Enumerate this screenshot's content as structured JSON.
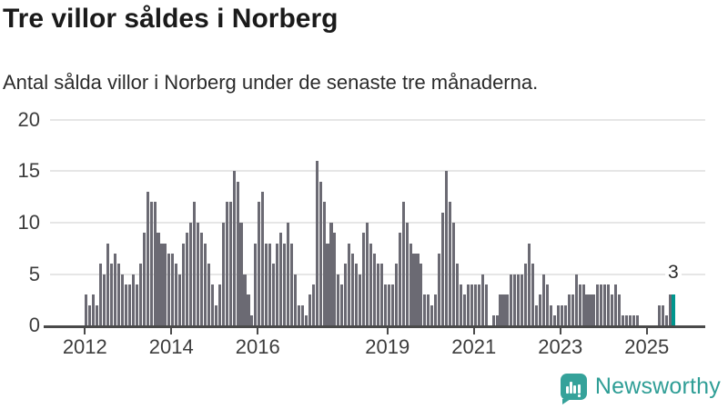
{
  "header": {
    "title": "Tre villor såldes i Norberg",
    "subtitle": "Antal sålda villor i Norberg under de senaste tre månaderna."
  },
  "chart_data": {
    "type": "bar",
    "title": "Tre villor såldes i Norberg",
    "subtitle": "Antal sålda villor i Norberg under de senaste tre månaderna.",
    "frequency": "monthly",
    "start_month": "2012-01",
    "values": [
      3,
      2,
      3,
      2,
      6,
      5,
      8,
      6,
      7,
      6,
      5,
      4,
      4,
      5,
      4,
      6,
      9,
      13,
      12,
      12,
      9,
      8,
      8,
      7,
      7,
      6,
      5,
      8,
      9,
      10,
      12,
      10,
      9,
      8,
      6,
      4,
      2,
      4,
      10,
      12,
      12,
      15,
      14,
      10,
      5,
      3,
      1,
      8,
      12,
      13,
      8,
      8,
      6,
      8,
      9,
      8,
      10,
      8,
      5,
      2,
      2,
      1,
      3,
      4,
      16,
      14,
      12,
      8,
      10,
      9,
      5,
      4,
      6,
      8,
      7,
      6,
      5,
      9,
      10,
      8,
      7,
      6,
      6,
      4,
      4,
      4,
      6,
      9,
      12,
      10,
      8,
      7,
      7,
      6,
      3,
      3,
      2,
      3,
      7,
      11,
      15,
      12,
      10,
      6,
      4,
      3,
      4,
      4,
      4,
      4,
      5,
      4,
      0,
      1,
      1,
      3,
      3,
      3,
      5,
      5,
      5,
      5,
      6,
      8,
      6,
      2,
      3,
      5,
      4,
      2,
      1,
      2,
      2,
      2,
      3,
      3,
      5,
      4,
      4,
      3,
      3,
      3,
      4,
      4,
      4,
      4,
      3,
      4,
      3,
      1,
      1,
      1,
      1,
      1,
      0,
      0,
      0,
      0,
      0,
      2,
      2,
      1,
      3,
      3
    ],
    "highlight_last": true,
    "highlight_value": 3,
    "annotation_label": "3",
    "ylabel": "",
    "xlabel": "",
    "ylim": [
      0,
      20
    ],
    "yticks": [
      0,
      5,
      10,
      15,
      20
    ],
    "xticks": [
      {
        "label": "2012",
        "month_offset": 0
      },
      {
        "label": "2014",
        "month_offset": 24
      },
      {
        "label": "2016",
        "month_offset": 48
      },
      {
        "label": "2019",
        "month_offset": 84
      },
      {
        "label": "2021",
        "month_offset": 108
      },
      {
        "label": "2023",
        "month_offset": 132
      },
      {
        "label": "2025",
        "month_offset": 156
      }
    ],
    "grid": true,
    "legend": "none",
    "bar_color": "#6b6a73",
    "highlight_color": "#00968e",
    "gridline_color": "#e6e6e6",
    "axis_color": "#4a4a4a"
  },
  "footer": {
    "logo_text": "Newsworthy",
    "logo_color": "#2f9e96",
    "logo_badge_color": "#35a29a"
  }
}
